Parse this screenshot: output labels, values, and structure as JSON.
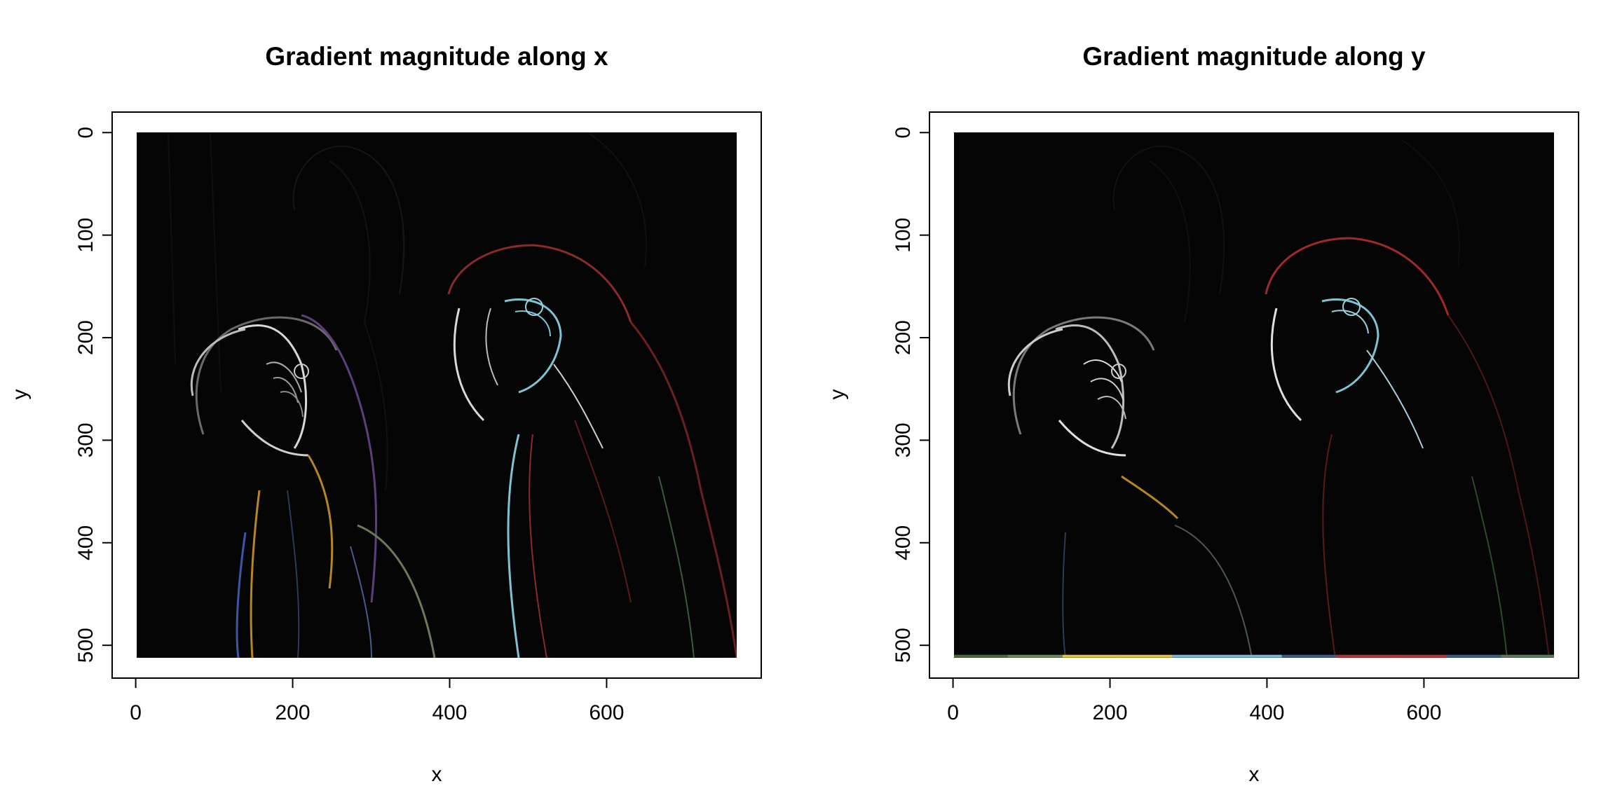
{
  "chart_data": [
    {
      "type": "heatmap",
      "title": "Gradient magnitude along x",
      "xlabel": "x",
      "ylabel": "y",
      "x_ticks": [
        0,
        200,
        400,
        600
      ],
      "y_ticks": [
        0,
        100,
        200,
        300,
        400,
        500
      ],
      "xlim": [
        -30,
        797
      ],
      "ylim": [
        532,
        -20
      ],
      "image_extent": {
        "x": [
          0,
          768
        ],
        "y": [
          0,
          512
        ]
      },
      "image_content": "gradient-magnitude-along-x-of-two-macaws",
      "grid": false,
      "colors": {
        "background": "#050505",
        "edge_white": "#d8d8d8",
        "edge_cyan": "#7fc3d4",
        "edge_red": "#8a2a2a",
        "edge_orange": "#b8861e",
        "edge_purple": "#5a3f7a",
        "edge_blue": "#3e56a8"
      }
    },
    {
      "type": "heatmap",
      "title": "Gradient magnitude along y",
      "xlabel": "x",
      "ylabel": "y",
      "x_ticks": [
        0,
        200,
        400,
        600
      ],
      "y_ticks": [
        0,
        100,
        200,
        300,
        400,
        500
      ],
      "xlim": [
        -30,
        797
      ],
      "ylim": [
        532,
        -20
      ],
      "image_extent": {
        "x": [
          0,
          768
        ],
        "y": [
          0,
          512
        ]
      },
      "image_content": "gradient-magnitude-along-y-of-two-macaws",
      "grid": false,
      "colors": {
        "background": "#050505",
        "edge_white": "#d8d8d8",
        "edge_cyan": "#7fc3d4",
        "edge_red": "#8a2a2a",
        "edge_orange": "#b8861e",
        "edge_purple": "#5a3f7a",
        "edge_blue": "#3e56a8"
      },
      "bottom_edge_colors": [
        "#4a6a3a",
        "#6a8a5a",
        "#e0c040",
        "#e0c040",
        "#70b8d8",
        "#70b8d8",
        "#3a5a8a",
        "#c03030",
        "#c03030",
        "#3a5a8a",
        "#5a7a5a"
      ]
    }
  ]
}
